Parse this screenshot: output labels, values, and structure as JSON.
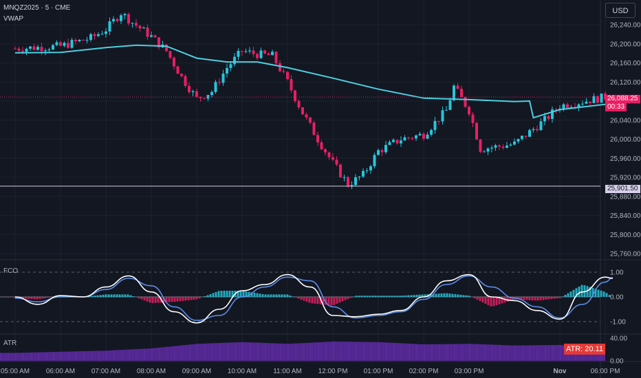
{
  "header": {
    "symbol": "MNQZ2025 · 5 · CME",
    "indicator": "VWAP"
  },
  "currency_button": "USD",
  "colors": {
    "background": "#131722",
    "up": "#26c6da",
    "down": "#e91e63",
    "vwap": "#4dd0e1",
    "fco_fast": "#ffffff",
    "fco_slow": "#5b8fe8",
    "atr": "#5b2a9e",
    "current_price_tag": "#e91e63",
    "atr_tag": "#e53935"
  },
  "price_tags": {
    "current_price": "26,088.25",
    "countdown": "00:33",
    "horizontal_line": "25,901.50"
  },
  "fco_pane": {
    "title": "FCO",
    "ticks": [
      "1.00",
      "0.00",
      "-1.00"
    ]
  },
  "atr_pane": {
    "title": "ATR",
    "ticks": [
      "40.00",
      "0.00"
    ],
    "value_label": "ATR: 20.11"
  },
  "chart_data": [
    {
      "type": "candlestick",
      "title": "MNQZ2025 · 5 · CME",
      "ylim": [
        25760,
        26280
      ],
      "y_ticks": [
        "26,240.00",
        "26,200.00",
        "26,160.00",
        "26,120.00",
        "26,080.00",
        "26,040.00",
        "26,000.00",
        "25,960.00",
        "25,920.00",
        "25,880.00",
        "25,840.00",
        "25,800.00",
        "25,760.00"
      ],
      "x_ticks": [
        "05:00 AM",
        "06:00 AM",
        "07:00 AM",
        "08:00 AM",
        "09:00 AM",
        "10:00 AM",
        "11:00 AM",
        "12:00 PM",
        "01:00 PM",
        "02:00 PM",
        "03:00 PM",
        "Nov",
        "06:00 PM"
      ],
      "close_path": [
        [
          "05:00 AM",
          26190
        ],
        [
          "06:00 AM",
          26195
        ],
        [
          "06:40 AM",
          26212
        ],
        [
          "07:00 AM",
          26230
        ],
        [
          "07:20 AM",
          26265
        ],
        [
          "07:35 AM",
          26245
        ],
        [
          "08:00 AM",
          26215
        ],
        [
          "08:20 AM",
          26185
        ],
        [
          "08:40 AM",
          26130
        ],
        [
          "09:00 AM",
          26085
        ],
        [
          "09:20 AM",
          26100
        ],
        [
          "09:40 AM",
          26150
        ],
        [
          "10:00 AM",
          26185
        ],
        [
          "10:20 AM",
          26178
        ],
        [
          "10:40 AM",
          26175
        ],
        [
          "11:00 AM",
          26120
        ],
        [
          "11:20 AM",
          26055
        ],
        [
          "11:40 AM",
          26000
        ],
        [
          "12:00 PM",
          25950
        ],
        [
          "12:20 PM",
          25905
        ],
        [
          "12:40 PM",
          25925
        ],
        [
          "01:00 PM",
          25975
        ],
        [
          "01:30 PM",
          26000
        ],
        [
          "02:00 PM",
          26010
        ],
        [
          "02:30 PM",
          26060
        ],
        [
          "02:40 PM",
          26110
        ],
        [
          "03:00 PM",
          26060
        ],
        [
          "03:15 PM",
          25980
        ],
        [
          "03:40 PM",
          25985
        ],
        [
          "04:00 PM",
          25990
        ],
        [
          "04:40 PM",
          26040
        ],
        [
          "05:00 PM",
          26070
        ],
        [
          "06:00 PM",
          26088.25
        ]
      ],
      "vwap_path": [
        [
          "05:00 AM",
          26181
        ],
        [
          "06:00 AM",
          26182
        ],
        [
          "07:00 AM",
          26192
        ],
        [
          "07:40 AM",
          26197
        ],
        [
          "08:20 AM",
          26195
        ],
        [
          "09:00 AM",
          26170
        ],
        [
          "09:40 AM",
          26162
        ],
        [
          "10:20 AM",
          26162
        ],
        [
          "11:00 AM",
          26150
        ],
        [
          "12:00 PM",
          26128
        ],
        [
          "01:00 PM",
          26105
        ],
        [
          "02:00 PM",
          26086
        ],
        [
          "03:00 PM",
          26083
        ],
        [
          "04:00 PM",
          26079
        ],
        [
          "04:20 PM",
          26080
        ],
        [
          "04:25 PM",
          26045
        ],
        [
          "05:00 PM",
          26062
        ],
        [
          "06:10 PM",
          26075
        ]
      ],
      "current_price": 26088.25,
      "horizontal_level": 25901.5
    },
    {
      "type": "line",
      "title": "FCO",
      "ylim": [
        -1.5,
        1.5
      ],
      "ticks": [
        1.0,
        0.0,
        -1.0
      ],
      "x": [
        "05:00 AM",
        "05:30 AM",
        "06:00 AM",
        "06:30 AM",
        "07:00 AM",
        "07:30 AM",
        "08:00 AM",
        "08:30 AM",
        "09:00 AM",
        "09:30 AM",
        "10:00 AM",
        "10:30 AM",
        "11:00 AM",
        "11:30 AM",
        "12:00 PM",
        "12:30 PM",
        "01:00 PM",
        "01:30 PM",
        "02:00 PM",
        "02:30 PM",
        "03:00 PM",
        "03:30 PM",
        "04:00 PM",
        "04:30 PM",
        "05:00 PM",
        "05:30 PM",
        "06:00 PM",
        "06:10 PM"
      ],
      "series": [
        {
          "name": "",
          "values": [
            0.0,
            -0.3,
            0.05,
            0.0,
            0.4,
            0.85,
            0.2,
            -0.6,
            -1.05,
            -0.5,
            0.25,
            0.5,
            0.9,
            0.4,
            -0.75,
            -0.8,
            -0.7,
            -0.55,
            0.0,
            0.65,
            0.9,
            0.0,
            -0.15,
            -0.55,
            -0.9,
            0.2,
            0.8,
            0.75
          ]
        },
        {
          "name": "",
          "values": [
            -0.05,
            -0.2,
            0.0,
            0.0,
            0.3,
            0.75,
            0.45,
            -0.4,
            -0.95,
            -0.75,
            0.0,
            0.4,
            0.8,
            0.65,
            -0.4,
            -0.85,
            -0.75,
            -0.6,
            -0.1,
            0.5,
            0.85,
            0.4,
            -0.05,
            -0.4,
            -0.85,
            -0.3,
            0.6,
            0.78
          ]
        },
        {
          "name": "",
          "values": [
            -0.05,
            -0.1,
            0.05,
            0.0,
            0.1,
            0.1,
            -0.25,
            -0.2,
            -0.1,
            0.25,
            0.25,
            0.1,
            0.1,
            -0.25,
            -0.35,
            0.05,
            0.05,
            0.05,
            0.1,
            0.15,
            0.05,
            -0.4,
            -0.1,
            -0.15,
            -0.05,
            0.5,
            0.2,
            -0.03
          ]
        }
      ]
    },
    {
      "type": "bar",
      "title": "ATR",
      "ylim": [
        0,
        40
      ],
      "ticks": [
        40.0,
        0.0
      ],
      "x": [
        "05:00 AM",
        "06:00 AM",
        "07:00 AM",
        "08:00 AM",
        "09:00 AM",
        "10:00 AM",
        "11:00 AM",
        "12:00 PM",
        "01:00 PM",
        "02:00 PM",
        "03:00 PM",
        "04:00 PM",
        "05:00 PM",
        "06:00 PM"
      ],
      "values": [
        14,
        16,
        18,
        22,
        30,
        33,
        30,
        34,
        33,
        29,
        30,
        27,
        28,
        20.11
      ],
      "last_value": 20.11
    }
  ]
}
